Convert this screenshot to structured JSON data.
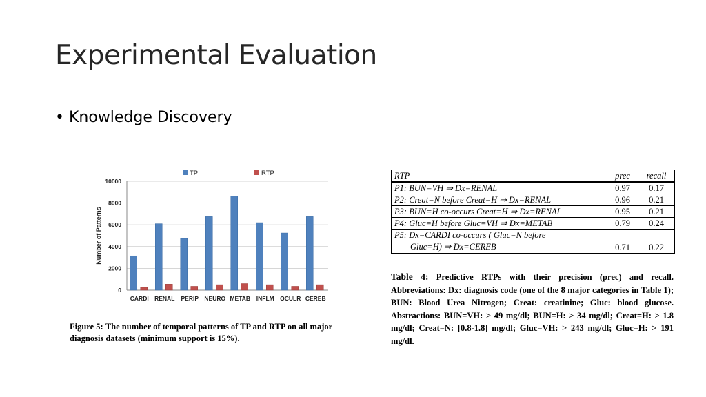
{
  "slide": {
    "title": "Experimental Evaluation",
    "bullet": "Knowledge Discovery"
  },
  "figure": {
    "caption_label": "Figure 5:",
    "caption_text": "The number of temporal patterns of TP and RTP on all major diagnosis datasets (minimum support is 15%)."
  },
  "chart_data": {
    "type": "bar",
    "categories": [
      "CARDI",
      "RENAL",
      "PERIP",
      "NEURO",
      "METAB",
      "INFLM",
      "OCULR",
      "CEREB"
    ],
    "series": [
      {
        "name": "TP",
        "color": "#4f81bd",
        "values": [
          3150,
          6100,
          4750,
          6750,
          8650,
          6200,
          5250,
          6750
        ]
      },
      {
        "name": "RTP",
        "color": "#c0504d",
        "values": [
          250,
          550,
          350,
          500,
          600,
          500,
          350,
          500
        ]
      }
    ],
    "title": "",
    "xlabel": "",
    "ylabel": "Number of Patterns",
    "ylim": [
      0,
      10000
    ],
    "yticks": [
      "0",
      "2000",
      "4000",
      "6000",
      "8000",
      "10000"
    ],
    "grid": true,
    "legend_position": "top-center"
  },
  "table": {
    "headers": [
      "RTP",
      "prec",
      "recall"
    ],
    "rows": [
      {
        "id": "P1:",
        "pattern": "BUN=VH ⇒ Dx=RENAL",
        "prec": "0.97",
        "recall": "0.17"
      },
      {
        "id": "P2:",
        "pattern": "Creat=N before Creat=H ⇒ Dx=RENAL",
        "prec": "0.96",
        "recall": "0.21"
      },
      {
        "id": "P3:",
        "pattern": "BUN=H co-occurs Creat=H ⇒ Dx=RENAL",
        "prec": "0.95",
        "recall": "0.21"
      },
      {
        "id": "P4:",
        "pattern": "Gluc=H before Gluc=VH ⇒ Dx=METAB",
        "prec": "0.79",
        "recall": "0.24"
      },
      {
        "id": "P5:",
        "pattern": "Dx=CARDI co-occurs ( Gluc=N before",
        "pattern_cont": "Gluc=H) ⇒ Dx=CEREB",
        "prec": "0.71",
        "recall": "0.22"
      }
    ],
    "caption_label": "Table 4:",
    "caption_text": "Predictive RTPs with their precision (prec) and recall. Abbreviations: Dx: diagnosis code (one of the 8 major categories in Table 1); BUN: Blood Urea Nitrogen; Creat: creatinine; Gluc: blood glucose. Abstractions: BUN=VH: > 49 mg/dl; BUN=H: > 34 mg/dl; Creat=H: > 1.8 mg/dl; Creat=N: [0.8-1.8] mg/dl; Gluc=VH: > 243 mg/dl; Gluc=H: > 191 mg/dl."
  }
}
